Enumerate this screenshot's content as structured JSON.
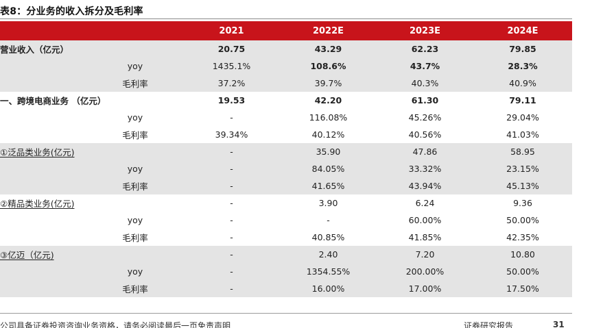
{
  "title": "表8：分业务的收入拆分及毛利率",
  "header": [
    "",
    "",
    "2021",
    "2022E",
    "2023E",
    "2024E"
  ],
  "rows": [
    {
      "label": "营业收入（亿元）",
      "sub": "",
      "values": [
        "20.75",
        "43.29",
        "62.23",
        "79.85"
      ],
      "bold_label": true,
      "bold_values": [
        true,
        true,
        true,
        true
      ]
    },
    {
      "label": "",
      "sub": "yoy",
      "values": [
        "1435.1%",
        "108.6%",
        "43.7%",
        "28.3%"
      ],
      "bold_label": false,
      "bold_values": [
        false,
        true,
        true,
        true
      ]
    },
    {
      "label": "",
      "sub": "毛利率",
      "values": [
        "37.2%",
        "39.7%",
        "40.3%",
        "40.9%"
      ],
      "bold_label": false,
      "bold_values": [
        false,
        false,
        false,
        false
      ]
    },
    {
      "label": "一、跨境电商业务 （亿元）",
      "sub": "",
      "values": [
        "19.53",
        "42.20",
        "61.30",
        "79.11"
      ],
      "bold_label": true,
      "bold_values": [
        true,
        true,
        true,
        true
      ]
    },
    {
      "label": "",
      "sub": "yoy",
      "values": [
        "-",
        "116.08%",
        "45.26%",
        "29.04%"
      ],
      "bold_label": false,
      "bold_values": [
        false,
        false,
        false,
        false
      ]
    },
    {
      "label": "",
      "sub": "毛利率",
      "values": [
        "39.34%",
        "40.12%",
        "40.56%",
        "41.03%"
      ],
      "bold_label": false,
      "bold_values": [
        false,
        false,
        false,
        false
      ]
    },
    {
      "label": "①泛品类业务(亿元)",
      "sub": "",
      "values": [
        "-",
        "35.90",
        "47.86",
        "58.95"
      ],
      "bold_label": false,
      "bold_values": [
        false,
        false,
        false,
        false
      ]
    },
    {
      "label": "",
      "sub": "yoy",
      "values": [
        "-",
        "84.05%",
        "33.32%",
        "23.15%"
      ],
      "bold_label": false,
      "bold_values": [
        false,
        false,
        false,
        false
      ]
    },
    {
      "label": "",
      "sub": "毛利率",
      "values": [
        "-",
        "41.65%",
        "43.94%",
        "45.13%"
      ],
      "bold_label": false,
      "bold_values": [
        false,
        false,
        false,
        false
      ]
    },
    {
      "label": "②精品类业务(亿元)",
      "sub": "",
      "values": [
        "-",
        "3.90",
        "6.24",
        "9.36"
      ],
      "bold_label": false,
      "bold_values": [
        false,
        false,
        false,
        false
      ]
    },
    {
      "label": "",
      "sub": "yoy",
      "values": [
        "-",
        "-",
        "60.00%",
        "50.00%"
      ],
      "bold_label": false,
      "bold_values": [
        false,
        false,
        false,
        false
      ]
    },
    {
      "label": "",
      "sub": "毛利率",
      "values": [
        "-",
        "40.85%",
        "41.85%",
        "42.35%"
      ],
      "bold_label": false,
      "bold_values": [
        false,
        false,
        false,
        false
      ]
    },
    {
      "label": "③亿迈（亿元)",
      "sub": "",
      "values": [
        "-",
        "2.40",
        "7.20",
        "10.80"
      ],
      "bold_label": false,
      "bold_values": [
        false,
        false,
        false,
        false
      ]
    },
    {
      "label": "",
      "sub": "yoy",
      "values": [
        "-",
        "1354.55%",
        "200.00%",
        "50.00%"
      ],
      "bold_label": false,
      "bold_values": [
        false,
        false,
        false,
        false
      ]
    },
    {
      "label": "",
      "sub": "毛利率",
      "values": [
        "-",
        "16.00%",
        "17.00%",
        "17.50%"
      ],
      "bold_label": false,
      "bold_values": [
        false,
        false,
        false,
        false
      ]
    }
  ],
  "footer": {
    "disclaimer": "公司具备证券投资咨询业务资格，请务必阅读最后一页免责声明",
    "report_type": "证券研究报告",
    "page_number": "31"
  },
  "colors": {
    "header_bg": "#c8141b",
    "shade_bg": "#e4e4e4"
  }
}
